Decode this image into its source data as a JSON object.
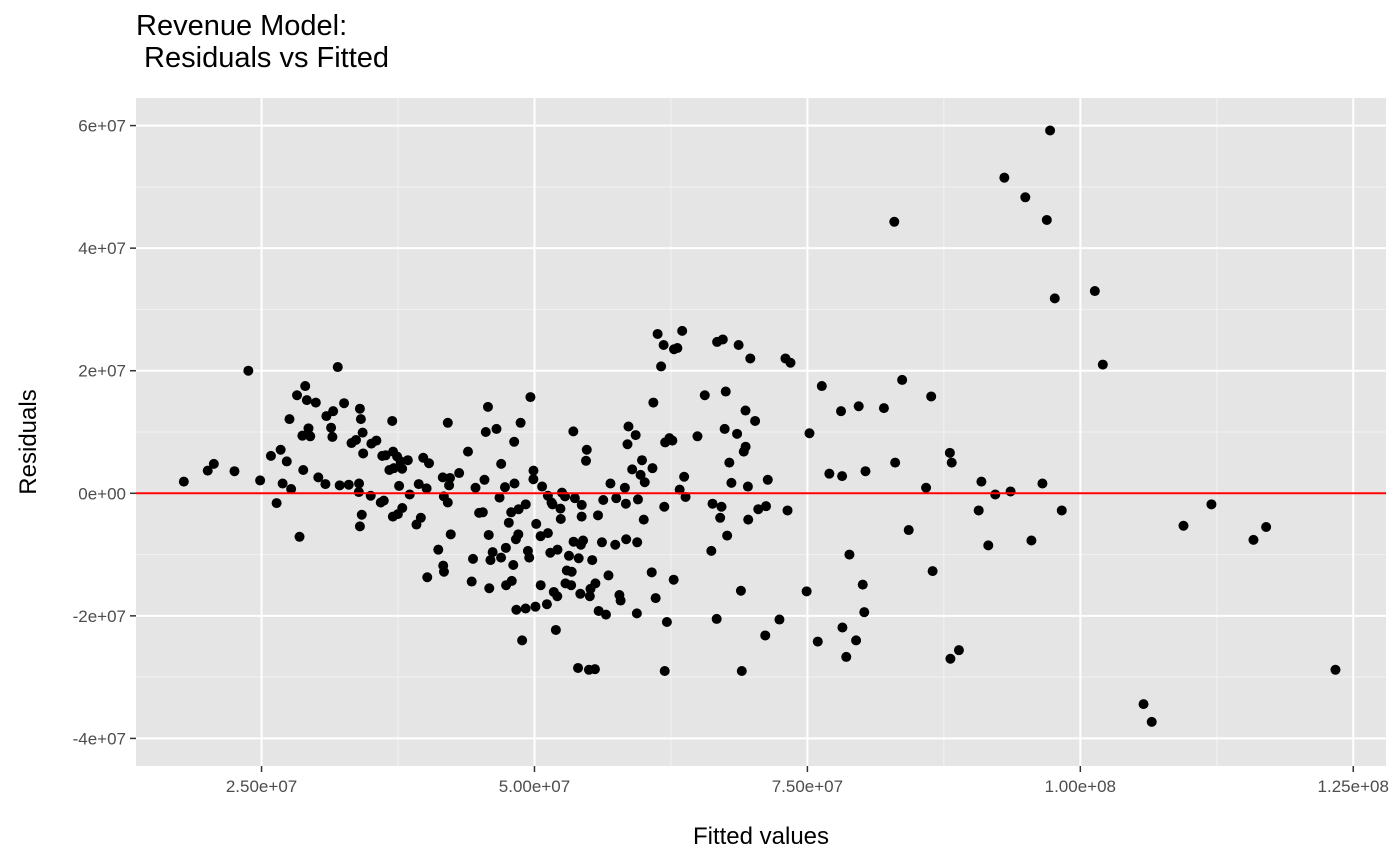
{
  "chart_data": {
    "type": "scatter",
    "title": "Revenue Model:\n Residuals vs Fitted",
    "xlabel": "Fitted values",
    "ylabel": "Residuals",
    "xlim": [
      13500000,
      128000000
    ],
    "ylim": [
      -40000000,
      60000000
    ],
    "x_ticks": [
      {
        "value": 25000000,
        "label": "2.50e+07"
      },
      {
        "value": 50000000,
        "label": "5.00e+07"
      },
      {
        "value": 75000000,
        "label": "7.50e+07"
      },
      {
        "value": 100000000,
        "label": "1.00e+08"
      },
      {
        "value": 125000000,
        "label": "1.25e+08"
      }
    ],
    "y_ticks": [
      {
        "value": -40000000,
        "label": "-4e+07"
      },
      {
        "value": -20000000,
        "label": "-2e+07"
      },
      {
        "value": 0,
        "label": "0e+00"
      },
      {
        "value": 20000000,
        "label": "2e+07"
      },
      {
        "value": 40000000,
        "label": "4e+07"
      },
      {
        "value": 60000000,
        "label": "6e+07"
      }
    ],
    "grid": true,
    "reference_line": {
      "y": 0,
      "color": "#ff0000"
    },
    "point_color": "#000000",
    "points": [
      [
        17880000,
        1900000
      ],
      [
        20070000,
        3700000
      ],
      [
        20630000,
        4800000
      ],
      [
        22520000,
        3600000
      ],
      [
        23790000,
        20000000
      ],
      [
        24870000,
        2100000
      ],
      [
        25860000,
        6100000
      ],
      [
        26380000,
        -1600000
      ],
      [
        26750000,
        7100000
      ],
      [
        26930000,
        1600000
      ],
      [
        27310000,
        5200000
      ],
      [
        27560000,
        12100000
      ],
      [
        27710000,
        700000
      ],
      [
        28250000,
        16000000
      ],
      [
        28480000,
        -7100000
      ],
      [
        28740000,
        9400000
      ],
      [
        28820000,
        3800000
      ],
      [
        29000000,
        17500000
      ],
      [
        29150000,
        15200000
      ],
      [
        29300000,
        10600000
      ],
      [
        29460000,
        9300000
      ],
      [
        29970000,
        14800000
      ],
      [
        30200000,
        2600000
      ],
      [
        30850000,
        1500000
      ],
      [
        30940000,
        12600000
      ],
      [
        31370000,
        10700000
      ],
      [
        31560000,
        13400000
      ],
      [
        31490000,
        9200000
      ],
      [
        31980000,
        20600000
      ],
      [
        32160000,
        1300000
      ],
      [
        32560000,
        14700000
      ],
      [
        32990000,
        1400000
      ],
      [
        33240000,
        8200000
      ],
      [
        33650000,
        8700000
      ],
      [
        33930000,
        1600000
      ],
      [
        33910000,
        200000
      ],
      [
        34100000,
        12100000
      ],
      [
        34010000,
        13800000
      ],
      [
        34010000,
        -5400000
      ],
      [
        34180000,
        -3500000
      ],
      [
        34260000,
        9900000
      ],
      [
        34310000,
        6500000
      ],
      [
        35060000,
        8100000
      ],
      [
        35520000,
        8600000
      ],
      [
        35920000,
        -1500000
      ],
      [
        36060000,
        6100000
      ],
      [
        36370000,
        6200000
      ],
      [
        36710000,
        3800000
      ],
      [
        37050000,
        6800000
      ],
      [
        36970000,
        11800000
      ],
      [
        37030000,
        -3800000
      ],
      [
        37120000,
        4100000
      ],
      [
        37420000,
        6000000
      ],
      [
        37490000,
        -3400000
      ],
      [
        37600000,
        1200000
      ],
      [
        37740000,
        5200000
      ],
      [
        37890000,
        -2400000
      ],
      [
        37880000,
        4000000
      ],
      [
        38400000,
        5400000
      ],
      [
        38570000,
        -200000
      ],
      [
        39190000,
        -5100000
      ],
      [
        39590000,
        -4000000
      ],
      [
        39810000,
        5800000
      ],
      [
        40120000,
        800000
      ],
      [
        40180000,
        -13700000
      ],
      [
        40340000,
        4900000
      ],
      [
        41190000,
        -9200000
      ],
      [
        41600000,
        2600000
      ],
      [
        41640000,
        -11800000
      ],
      [
        41710000,
        -12800000
      ],
      [
        42060000,
        11500000
      ],
      [
        42060000,
        -1500000
      ],
      [
        42260000,
        2500000
      ],
      [
        42180000,
        1300000
      ],
      [
        42330000,
        -6700000
      ],
      [
        43910000,
        6800000
      ],
      [
        44250000,
        -14400000
      ],
      [
        44370000,
        -10700000
      ],
      [
        44930000,
        -3200000
      ],
      [
        45270000,
        -3100000
      ],
      [
        45420000,
        2200000
      ],
      [
        45540000,
        10000000
      ],
      [
        45740000,
        14100000
      ],
      [
        45810000,
        -6800000
      ],
      [
        45860000,
        -15500000
      ],
      [
        45970000,
        -10900000
      ],
      [
        46170000,
        -9600000
      ],
      [
        46520000,
        10500000
      ],
      [
        46950000,
        4800000
      ],
      [
        46940000,
        -10500000
      ],
      [
        47400000,
        -15000000
      ],
      [
        47380000,
        -8900000
      ],
      [
        47650000,
        -4800000
      ],
      [
        47870000,
        -3100000
      ],
      [
        47920000,
        -14300000
      ],
      [
        48060000,
        -11700000
      ],
      [
        48300000,
        -7500000
      ],
      [
        48340000,
        -19000000
      ],
      [
        48170000,
        1600000
      ],
      [
        48140000,
        8400000
      ],
      [
        48520000,
        -6700000
      ],
      [
        48550000,
        -2600000
      ],
      [
        48730000,
        11500000
      ],
      [
        48870000,
        -24000000
      ],
      [
        49190000,
        -18800000
      ],
      [
        49400000,
        -9400000
      ],
      [
        49520000,
        -10500000
      ],
      [
        49630000,
        15700000
      ],
      [
        49900000,
        2300000
      ],
      [
        49910000,
        3700000
      ],
      [
        50090000,
        -18500000
      ],
      [
        50160000,
        -5000000
      ],
      [
        50570000,
        -15000000
      ],
      [
        50560000,
        -7000000
      ],
      [
        51140000,
        -18100000
      ],
      [
        51230000,
        -400000
      ],
      [
        51230000,
        -6500000
      ],
      [
        51450000,
        -9700000
      ],
      [
        51560000,
        -1500000
      ],
      [
        51650000,
        -1800000
      ],
      [
        51770000,
        -16100000
      ],
      [
        51960000,
        -22300000
      ],
      [
        52090000,
        -16800000
      ],
      [
        52110000,
        -9200000
      ],
      [
        52380000,
        -2500000
      ],
      [
        52410000,
        -4200000
      ],
      [
        52520000,
        100000
      ],
      [
        52800000,
        -500000
      ],
      [
        52840000,
        -14700000
      ],
      [
        52960000,
        -12600000
      ],
      [
        53160000,
        -10200000
      ],
      [
        53360000,
        -15000000
      ],
      [
        53410000,
        -12800000
      ],
      [
        53560000,
        10100000
      ],
      [
        53580000,
        -7900000
      ],
      [
        53990000,
        -28500000
      ],
      [
        54050000,
        -10600000
      ],
      [
        54200000,
        -16400000
      ],
      [
        54250000,
        -8400000
      ],
      [
        54330000,
        -1900000
      ],
      [
        54320000,
        -3800000
      ],
      [
        54450000,
        -7700000
      ],
      [
        54720000,
        5300000
      ],
      [
        54790000,
        7100000
      ],
      [
        54990000,
        -28800000
      ],
      [
        55070000,
        -16800000
      ],
      [
        55130000,
        -15600000
      ],
      [
        55290000,
        -10900000
      ],
      [
        55580000,
        -14700000
      ],
      [
        55540000,
        -28700000
      ],
      [
        55880000,
        -19200000
      ],
      [
        55820000,
        -3600000
      ],
      [
        56180000,
        -8000000
      ],
      [
        56550000,
        -19800000
      ],
      [
        56780000,
        -13400000
      ],
      [
        56960000,
        1600000
      ],
      [
        57400000,
        -8400000
      ],
      [
        57490000,
        -800000
      ],
      [
        57780000,
        -16600000
      ],
      [
        57890000,
        -17500000
      ],
      [
        58280000,
        900000
      ],
      [
        58370000,
        -1700000
      ],
      [
        58400000,
        -7500000
      ],
      [
        58520000,
        8000000
      ],
      [
        58610000,
        10900000
      ],
      [
        58950000,
        3900000
      ],
      [
        59270000,
        9500000
      ],
      [
        59380000,
        -19600000
      ],
      [
        59410000,
        -8000000
      ],
      [
        59480000,
        -1000000
      ],
      [
        59720000,
        3000000
      ],
      [
        59850000,
        5400000
      ],
      [
        60010000,
        -4300000
      ],
      [
        60740000,
        -12900000
      ],
      [
        60810000,
        4100000
      ],
      [
        60890000,
        14800000
      ],
      [
        61100000,
        -17100000
      ],
      [
        61280000,
        26000000
      ],
      [
        61600000,
        20700000
      ],
      [
        61830000,
        24200000
      ],
      [
        61890000,
        -2200000
      ],
      [
        61930000,
        -29000000
      ],
      [
        61970000,
        8300000
      ],
      [
        62130000,
        -21000000
      ],
      [
        62360000,
        9000000
      ],
      [
        62630000,
        8600000
      ],
      [
        62780000,
        23500000
      ],
      [
        62750000,
        -14100000
      ],
      [
        63090000,
        23700000
      ],
      [
        63530000,
        26500000
      ],
      [
        63710000,
        2700000
      ],
      [
        63840000,
        -600000
      ],
      [
        64930000,
        9300000
      ],
      [
        65600000,
        16000000
      ],
      [
        66200000,
        -9400000
      ],
      [
        66310000,
        -1700000
      ],
      [
        66690000,
        -20500000
      ],
      [
        66730000,
        24700000
      ],
      [
        67010000,
        -4000000
      ],
      [
        67130000,
        -2200000
      ],
      [
        67250000,
        25100000
      ],
      [
        67420000,
        10500000
      ],
      [
        67520000,
        16600000
      ],
      [
        67650000,
        -6900000
      ],
      [
        67850000,
        5000000
      ],
      [
        68040000,
        1700000
      ],
      [
        68560000,
        9700000
      ],
      [
        68700000,
        24200000
      ],
      [
        68990000,
        -29000000
      ],
      [
        68910000,
        -15900000
      ],
      [
        69170000,
        6800000
      ],
      [
        69340000,
        7600000
      ],
      [
        69330000,
        13500000
      ],
      [
        69550000,
        1100000
      ],
      [
        69580000,
        -4300000
      ],
      [
        69770000,
        22000000
      ],
      [
        70210000,
        11800000
      ],
      [
        70500000,
        -2600000
      ],
      [
        71140000,
        -23200000
      ],
      [
        71210000,
        -2100000
      ],
      [
        71370000,
        2200000
      ],
      [
        72440000,
        -20600000
      ],
      [
        72990000,
        22000000
      ],
      [
        73180000,
        -2800000
      ],
      [
        73450000,
        21300000
      ],
      [
        74930000,
        -16000000
      ],
      [
        75190000,
        9800000
      ],
      [
        75950000,
        -24200000
      ],
      [
        76320000,
        17500000
      ],
      [
        77010000,
        3200000
      ],
      [
        78080000,
        13400000
      ],
      [
        78180000,
        2800000
      ],
      [
        78210000,
        -21900000
      ],
      [
        78560000,
        -26700000
      ],
      [
        78850000,
        -10000000
      ],
      [
        79460000,
        -24000000
      ],
      [
        79700000,
        14200000
      ],
      [
        80070000,
        -14900000
      ],
      [
        80210000,
        -19400000
      ],
      [
        80320000,
        3600000
      ],
      [
        82010000,
        13900000
      ],
      [
        82960000,
        44300000
      ],
      [
        83040000,
        5000000
      ],
      [
        83680000,
        18500000
      ],
      [
        84280000,
        -6000000
      ],
      [
        85870000,
        900000
      ],
      [
        86340000,
        15800000
      ],
      [
        86470000,
        -12700000
      ],
      [
        88050000,
        6600000
      ],
      [
        88100000,
        -27000000
      ],
      [
        88220000,
        5000000
      ],
      [
        88880000,
        -25600000
      ],
      [
        90690000,
        -2800000
      ],
      [
        90940000,
        1900000
      ],
      [
        91570000,
        -8500000
      ],
      [
        92210000,
        -200000
      ],
      [
        93040000,
        51500000
      ],
      [
        93610000,
        300000
      ],
      [
        94960000,
        48300000
      ],
      [
        95520000,
        -7700000
      ],
      [
        96530000,
        1600000
      ],
      [
        96930000,
        44600000
      ],
      [
        97230000,
        59200000
      ],
      [
        97660000,
        31800000
      ],
      [
        98300000,
        -2800000
      ],
      [
        101330000,
        33000000
      ],
      [
        102060000,
        21000000
      ],
      [
        105790000,
        -34400000
      ],
      [
        106540000,
        -37300000
      ],
      [
        109450000,
        -5300000
      ],
      [
        112010000,
        -1800000
      ],
      [
        115860000,
        -7600000
      ],
      [
        117020000,
        -5500000
      ],
      [
        123370000,
        -28800000
      ],
      [
        35000000,
        -400000
      ],
      [
        36200000,
        -1200000
      ],
      [
        39400000,
        1500000
      ],
      [
        41700000,
        -500000
      ],
      [
        43100000,
        3300000
      ],
      [
        44600000,
        900000
      ],
      [
        46800000,
        -700000
      ],
      [
        47300000,
        1000000
      ],
      [
        49200000,
        -1800000
      ],
      [
        50700000,
        1100000
      ],
      [
        53700000,
        -800000
      ],
      [
        56300000,
        -1100000
      ],
      [
        60100000,
        1800000
      ],
      [
        63300000,
        600000
      ]
    ]
  }
}
